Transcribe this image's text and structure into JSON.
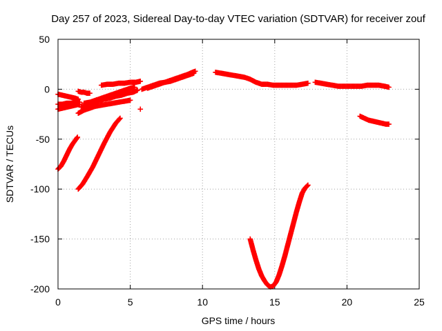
{
  "chart_data": {
    "type": "scatter",
    "title": "Day 257 of 2023, Sidereal Day-to-day VTEC variation (SDTVAR) for receiver zouf",
    "xlabel": "GPS time / hours",
    "ylabel": "SDTVAR / TECUs",
    "xlim": [
      0,
      25
    ],
    "ylim": [
      -200,
      50
    ],
    "x_ticks": [
      0,
      5,
      10,
      15,
      20,
      25
    ],
    "y_ticks": [
      -200,
      -150,
      -100,
      -50,
      0,
      50
    ],
    "x_tick_labels": [
      "0",
      "5",
      "10",
      "15",
      "20",
      "25"
    ],
    "y_tick_labels": [
      "-200",
      "-150",
      "-100",
      "-50",
      "0",
      "50"
    ],
    "grid": true,
    "marker": "+",
    "color": "#ff0000",
    "series": [
      {
        "x": [
          0.0,
          0.2,
          0.4,
          0.6,
          0.8,
          1.0,
          1.2,
          1.35
        ],
        "y": [
          -80,
          -77,
          -72,
          -66,
          -60,
          -55,
          -51,
          -48
        ]
      },
      {
        "x": [
          1.4,
          1.7,
          2.0,
          2.4,
          2.8,
          3.2,
          3.6,
          4.0,
          4.3
        ],
        "y": [
          -100,
          -95,
          -88,
          -78,
          -66,
          -54,
          -43,
          -34,
          -29
        ]
      },
      {
        "x": [
          0.0,
          0.3,
          0.6,
          0.9,
          1.2,
          1.4
        ],
        "y": [
          -5,
          -6,
          -7,
          -8,
          -9,
          -10
        ]
      },
      {
        "x": [
          0.0,
          0.3,
          0.6,
          0.9,
          1.2,
          1.5
        ],
        "y": [
          -15,
          -15,
          -14,
          -14,
          -13,
          -13
        ]
      },
      {
        "x": [
          0.0,
          0.3,
          0.6,
          0.9,
          1.2,
          1.5
        ],
        "y": [
          -20,
          -19,
          -18,
          -17,
          -16,
          -15
        ]
      },
      {
        "x": [
          1.4,
          1.6,
          1.8,
          2.0,
          2.2
        ],
        "y": [
          -2,
          -3,
          -3,
          -4,
          -4
        ]
      },
      {
        "x": [
          1.4,
          1.8,
          2.2,
          2.6,
          3.0,
          3.4,
          3.8,
          4.2,
          4.6,
          5.0
        ],
        "y": [
          -24,
          -21,
          -19,
          -17,
          -16,
          -15,
          -14,
          -13,
          -12,
          -11
        ]
      },
      {
        "x": [
          1.6,
          2.0,
          2.4,
          2.8,
          3.2,
          3.6,
          4.0,
          4.4,
          4.8,
          5.2,
          5.5
        ],
        "y": [
          -18,
          -16,
          -14,
          -12,
          -10,
          -9,
          -7,
          -6,
          -4,
          -3,
          -1
        ]
      },
      {
        "x": [
          1.8,
          2.2,
          2.6,
          3.0,
          3.4,
          3.8,
          4.2,
          4.6,
          5.0,
          5.3
        ],
        "y": [
          -14,
          -13,
          -11,
          -9,
          -7,
          -5,
          -3,
          -1,
          1,
          2
        ]
      },
      {
        "x": [
          3.0,
          3.4,
          3.8,
          4.2,
          4.6,
          5.0,
          5.4,
          5.7
        ],
        "y": [
          4,
          5,
          5,
          6,
          6,
          7,
          7,
          8
        ]
      },
      {
        "x": [
          5.7
        ],
        "y": [
          -20
        ]
      },
      {
        "x": [
          5.8,
          6.2,
          6.6,
          7.0,
          7.4,
          7.8,
          8.2,
          8.6,
          9.0,
          9.4
        ],
        "y": [
          0,
          2,
          4,
          6,
          7,
          8,
          10,
          12,
          14,
          16
        ]
      },
      {
        "x": [
          6.2,
          6.6,
          7.0,
          7.4,
          7.8,
          8.2,
          8.6,
          9.0,
          9.3,
          9.5
        ],
        "y": [
          1,
          3,
          5,
          7,
          9,
          11,
          13,
          15,
          17,
          18
        ]
      },
      {
        "x": [
          10.9,
          11.3,
          11.7,
          12.1,
          12.5,
          12.9,
          13.3,
          13.7,
          14.1,
          14.5,
          14.9,
          15.3,
          15.7,
          16.1,
          16.5,
          16.9,
          17.3
        ],
        "y": [
          17,
          16,
          15,
          14,
          13,
          12,
          10,
          7,
          5,
          5,
          4,
          4,
          4,
          4,
          4,
          5,
          6
        ]
      },
      {
        "x": [
          13.3,
          13.5,
          13.7,
          13.9,
          14.1,
          14.3,
          14.5,
          14.7,
          14.9,
          15.1,
          15.3,
          15.5,
          15.7,
          15.9,
          16.1,
          16.3,
          16.5,
          16.7,
          16.9,
          17.1,
          17.3
        ],
        "y": [
          -150,
          -161,
          -171,
          -180,
          -187,
          -192,
          -196,
          -198,
          -197,
          -193,
          -186,
          -177,
          -167,
          -156,
          -145,
          -134,
          -123,
          -113,
          -104,
          -99,
          -96
        ]
      },
      {
        "x": [
          17.8,
          18.2,
          18.6,
          19.0,
          19.4,
          19.8,
          20.2,
          20.6,
          21.0,
          21.4,
          21.8,
          22.2,
          22.6,
          22.9
        ],
        "y": [
          7,
          6,
          5,
          4,
          3,
          3,
          3,
          3,
          3,
          4,
          4,
          4,
          3,
          2
        ]
      },
      {
        "x": [
          20.9,
          21.2,
          21.5,
          21.8,
          22.1,
          22.4,
          22.7,
          22.9
        ],
        "y": [
          -27,
          -29,
          -31,
          -32,
          -33,
          -34,
          -35,
          -35
        ]
      }
    ]
  }
}
